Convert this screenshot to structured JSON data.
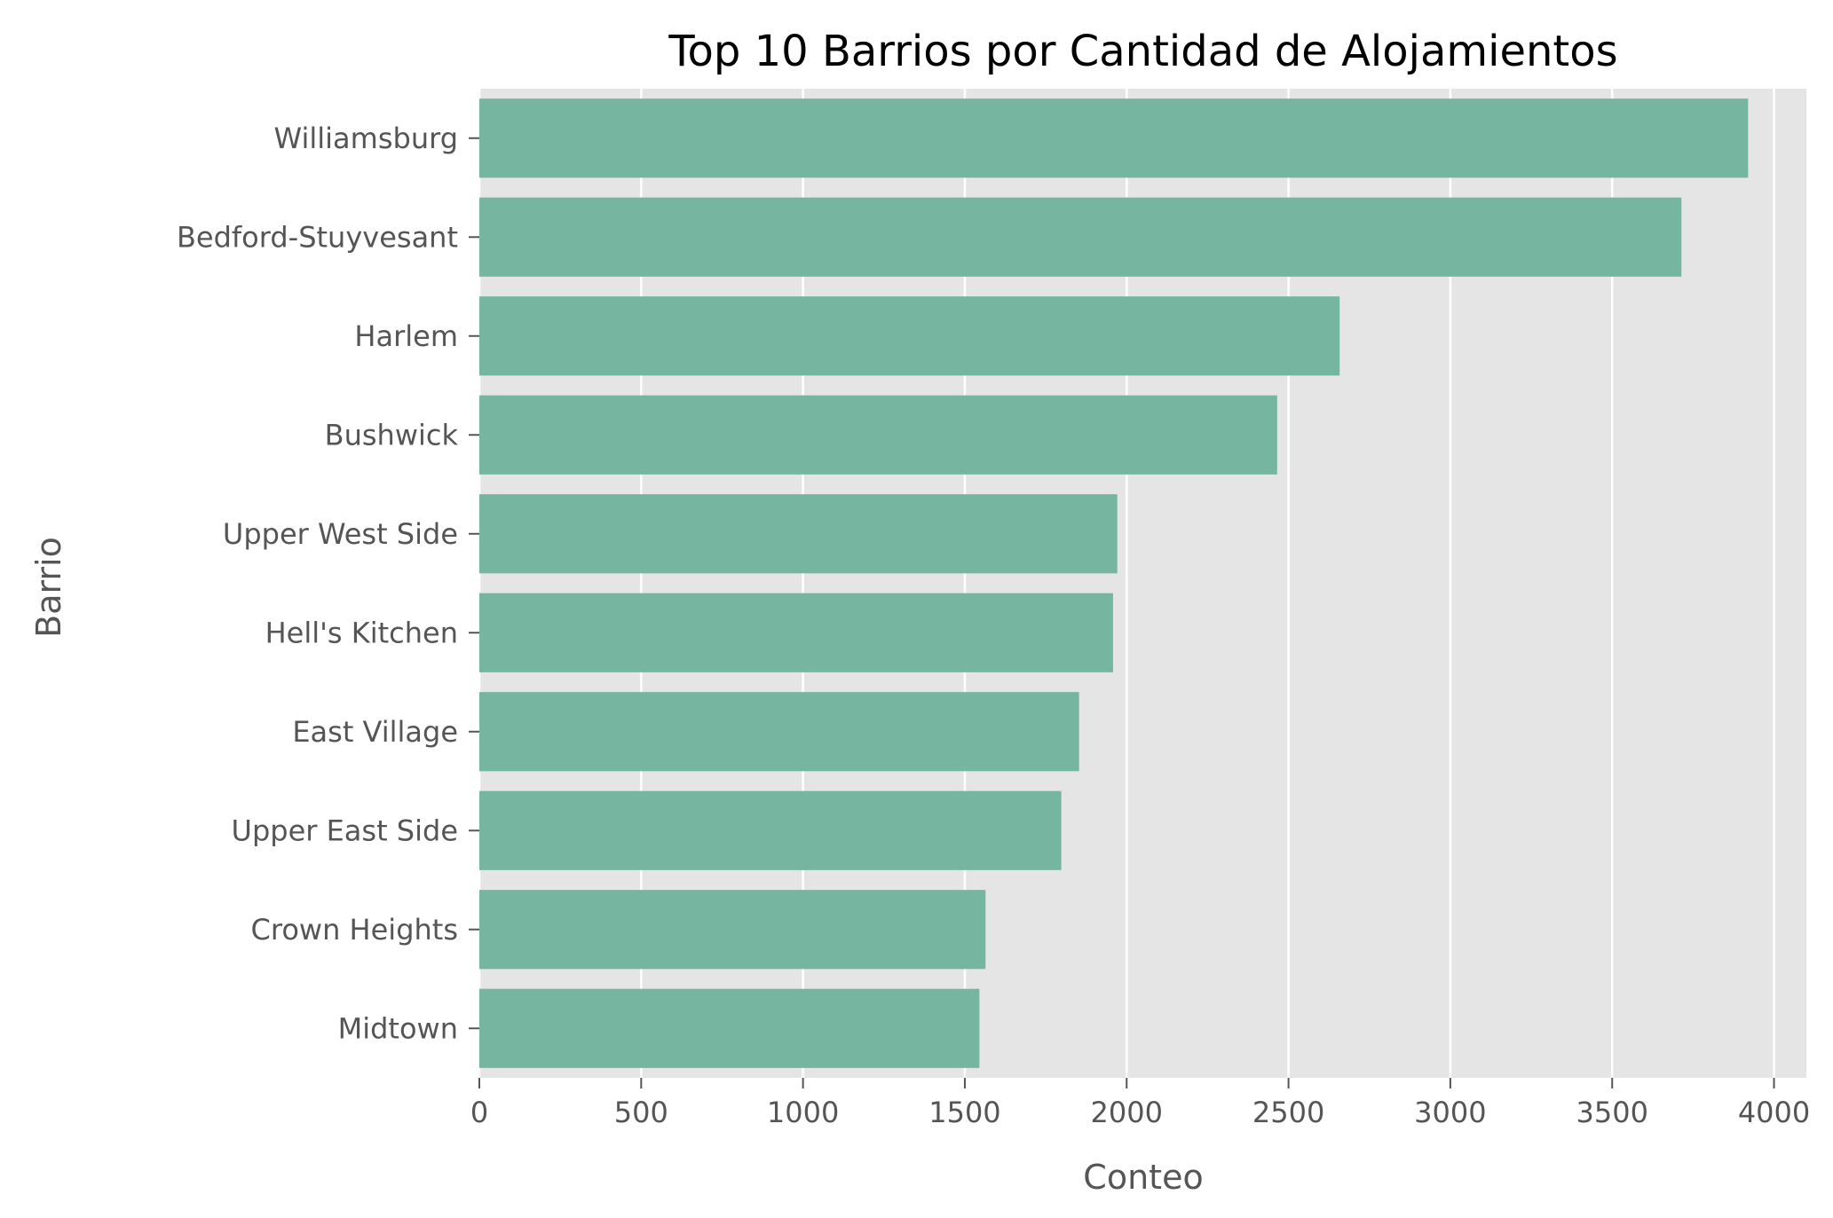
{
  "chart_data": {
    "type": "bar",
    "orientation": "horizontal",
    "title": "Top 10 Barrios por Cantidad de Alojamientos",
    "xlabel": "Conteo",
    "ylabel": "Barrio",
    "categories": [
      "Williamsburg",
      "Bedford-Stuyvesant",
      "Harlem",
      "Bushwick",
      "Upper West Side",
      "Hell's Kitchen",
      "East Village",
      "Upper East Side",
      "Crown Heights",
      "Midtown"
    ],
    "values": [
      3920,
      3714,
      2658,
      2465,
      1971,
      1958,
      1853,
      1798,
      1564,
      1545
    ],
    "xlim": [
      0,
      4100
    ],
    "xticks": [
      0,
      500,
      1000,
      1500,
      2000,
      2500,
      3000,
      3500,
      4000
    ],
    "grid": true,
    "legend": "none",
    "colors": {
      "bar": "#76b5a0",
      "plot_background": "#e5e5e5",
      "grid": "#ffffff",
      "text": "#555555",
      "title": "#000000"
    }
  }
}
